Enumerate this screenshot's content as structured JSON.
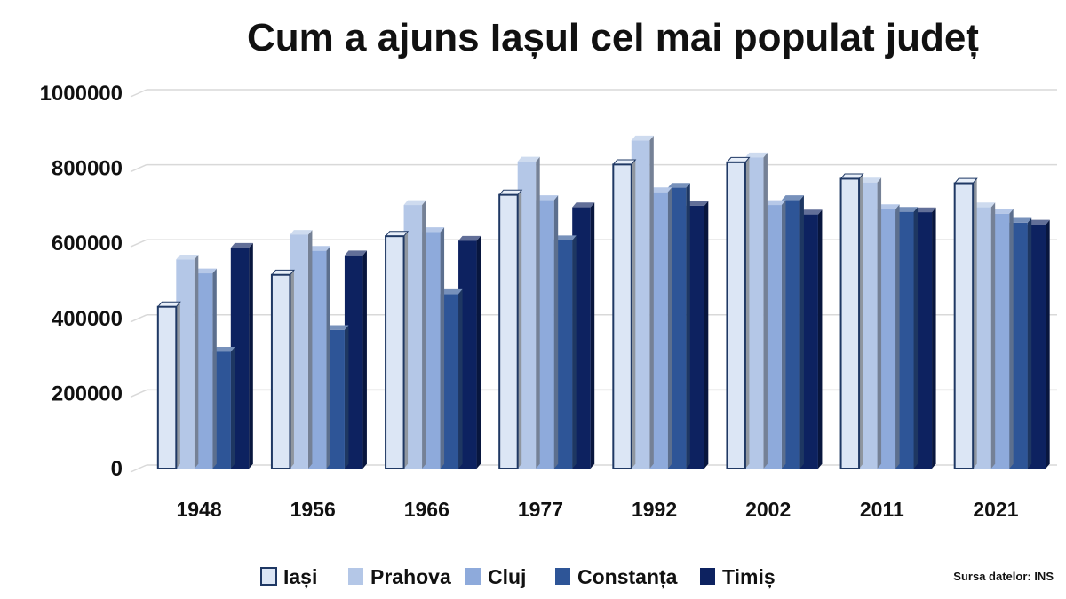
{
  "chart_data": {
    "type": "bar",
    "title": "Cum a ajuns Iașul cel mai populat județ",
    "categories": [
      "1948",
      "1956",
      "1966",
      "1977",
      "1992",
      "2002",
      "2011",
      "2021"
    ],
    "series": [
      {
        "name": "Iași",
        "color": "#dce6f5",
        "values": [
          431000,
          516000,
          619000,
          729000,
          810000,
          816000,
          772000,
          760000
        ]
      },
      {
        "name": "Prahova",
        "color": "#b4c7e7",
        "values": [
          557000,
          623000,
          702000,
          818000,
          874000,
          829000,
          762000,
          696000
        ]
      },
      {
        "name": "Cluj",
        "color": "#8eaadb",
        "values": [
          520000,
          580000,
          630000,
          715000,
          736000,
          702000,
          691000,
          679000
        ]
      },
      {
        "name": "Constanța",
        "color": "#2e5597",
        "values": [
          311000,
          369000,
          465000,
          608000,
          748000,
          715000,
          684000,
          655000
        ]
      },
      {
        "name": "Timiș",
        "color": "#0d2260",
        "values": [
          588000,
          568000,
          607000,
          696000,
          700000,
          677000,
          683000,
          650000
        ]
      }
    ],
    "ylim": [
      0,
      1000000
    ],
    "yticks": [
      "0",
      "200000",
      "400000",
      "600000",
      "800000",
      "1000000"
    ],
    "grid": true,
    "legend": "bottom"
  },
  "source_note": "Sursa datelor: INS"
}
